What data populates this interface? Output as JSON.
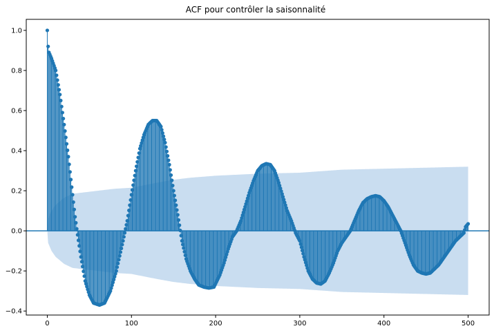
{
  "chart_data": {
    "type": "stem",
    "title": "ACF pour contrôler la saisonnalité",
    "xlabel": "",
    "ylabel": "",
    "xlim": [
      -25,
      525
    ],
    "ylim": [
      -0.42,
      1.055
    ],
    "x_ticks": [
      0,
      100,
      200,
      300,
      400,
      500
    ],
    "y_ticks": [
      -0.4,
      -0.2,
      0.0,
      0.2,
      0.4,
      0.6,
      0.8,
      1.0
    ],
    "y_tick_labels": [
      "−0.4",
      "−0.2",
      "0.0",
      "0.2",
      "0.4",
      "0.6",
      "0.8",
      "1.0"
    ],
    "lags": {
      "start": 0,
      "end": 500,
      "step": 1
    },
    "acf_keypoints": [
      [
        0,
        1.0
      ],
      [
        1,
        0.92
      ],
      [
        2,
        0.89
      ],
      [
        5,
        0.86
      ],
      [
        10,
        0.8
      ],
      [
        15,
        0.68
      ],
      [
        20,
        0.53
      ],
      [
        25,
        0.37
      ],
      [
        30,
        0.18
      ],
      [
        33,
        0.07
      ],
      [
        36,
        -0.02
      ],
      [
        40,
        -0.13
      ],
      [
        45,
        -0.25
      ],
      [
        50,
        -0.32
      ],
      [
        55,
        -0.36
      ],
      [
        62,
        -0.37
      ],
      [
        68,
        -0.36
      ],
      [
        75,
        -0.3
      ],
      [
        82,
        -0.2
      ],
      [
        90,
        -0.05
      ],
      [
        95,
        0.05
      ],
      [
        100,
        0.18
      ],
      [
        105,
        0.3
      ],
      [
        110,
        0.41
      ],
      [
        115,
        0.48
      ],
      [
        120,
        0.53
      ],
      [
        125,
        0.55
      ],
      [
        130,
        0.55
      ],
      [
        135,
        0.52
      ],
      [
        140,
        0.44
      ],
      [
        145,
        0.33
      ],
      [
        150,
        0.2
      ],
      [
        155,
        0.08
      ],
      [
        160,
        -0.05
      ],
      [
        165,
        -0.14
      ],
      [
        170,
        -0.2
      ],
      [
        175,
        -0.24
      ],
      [
        180,
        -0.27
      ],
      [
        186,
        -0.28
      ],
      [
        192,
        -0.285
      ],
      [
        198,
        -0.28
      ],
      [
        205,
        -0.22
      ],
      [
        210,
        -0.16
      ],
      [
        215,
        -0.09
      ],
      [
        220,
        -0.03
      ],
      [
        225,
        0.0
      ],
      [
        230,
        0.05
      ],
      [
        235,
        0.12
      ],
      [
        240,
        0.19
      ],
      [
        245,
        0.25
      ],
      [
        250,
        0.3
      ],
      [
        255,
        0.325
      ],
      [
        260,
        0.335
      ],
      [
        265,
        0.33
      ],
      [
        270,
        0.3
      ],
      [
        275,
        0.24
      ],
      [
        280,
        0.17
      ],
      [
        285,
        0.1
      ],
      [
        290,
        0.05
      ],
      [
        295,
        -0.01
      ],
      [
        300,
        -0.05
      ],
      [
        305,
        -0.13
      ],
      [
        310,
        -0.2
      ],
      [
        315,
        -0.24
      ],
      [
        320,
        -0.26
      ],
      [
        325,
        -0.265
      ],
      [
        330,
        -0.25
      ],
      [
        335,
        -0.21
      ],
      [
        340,
        -0.16
      ],
      [
        345,
        -0.1
      ],
      [
        350,
        -0.06
      ],
      [
        355,
        -0.03
      ],
      [
        360,
        0.0
      ],
      [
        365,
        0.05
      ],
      [
        370,
        0.1
      ],
      [
        375,
        0.14
      ],
      [
        380,
        0.16
      ],
      [
        385,
        0.17
      ],
      [
        390,
        0.175
      ],
      [
        395,
        0.17
      ],
      [
        400,
        0.15
      ],
      [
        405,
        0.12
      ],
      [
        410,
        0.08
      ],
      [
        415,
        0.04
      ],
      [
        420,
        0.0
      ],
      [
        425,
        -0.06
      ],
      [
        430,
        -0.12
      ],
      [
        435,
        -0.17
      ],
      [
        440,
        -0.2
      ],
      [
        445,
        -0.21
      ],
      [
        450,
        -0.215
      ],
      [
        455,
        -0.21
      ],
      [
        460,
        -0.19
      ],
      [
        465,
        -0.17
      ],
      [
        470,
        -0.14
      ],
      [
        475,
        -0.11
      ],
      [
        480,
        -0.08
      ],
      [
        485,
        -0.05
      ],
      [
        490,
        -0.03
      ],
      [
        495,
        -0.01
      ],
      [
        497,
        0.02
      ],
      [
        500,
        0.035
      ]
    ],
    "confidence_band_keypoints": [
      [
        0,
        0.0
      ],
      [
        1,
        0.06
      ],
      [
        5,
        0.1
      ],
      [
        10,
        0.13
      ],
      [
        20,
        0.165
      ],
      [
        30,
        0.185
      ],
      [
        40,
        0.19
      ],
      [
        60,
        0.2
      ],
      [
        80,
        0.21
      ],
      [
        100,
        0.215
      ],
      [
        130,
        0.24
      ],
      [
        150,
        0.255
      ],
      [
        170,
        0.265
      ],
      [
        200,
        0.275
      ],
      [
        250,
        0.285
      ],
      [
        300,
        0.29
      ],
      [
        350,
        0.305
      ],
      [
        400,
        0.31
      ],
      [
        450,
        0.315
      ],
      [
        500,
        0.32
      ]
    ],
    "colors": {
      "stem": "#1f77b4",
      "marker": "#1f77b4",
      "band": "#c6dbef",
      "zero_line": "#1f77b4"
    }
  }
}
